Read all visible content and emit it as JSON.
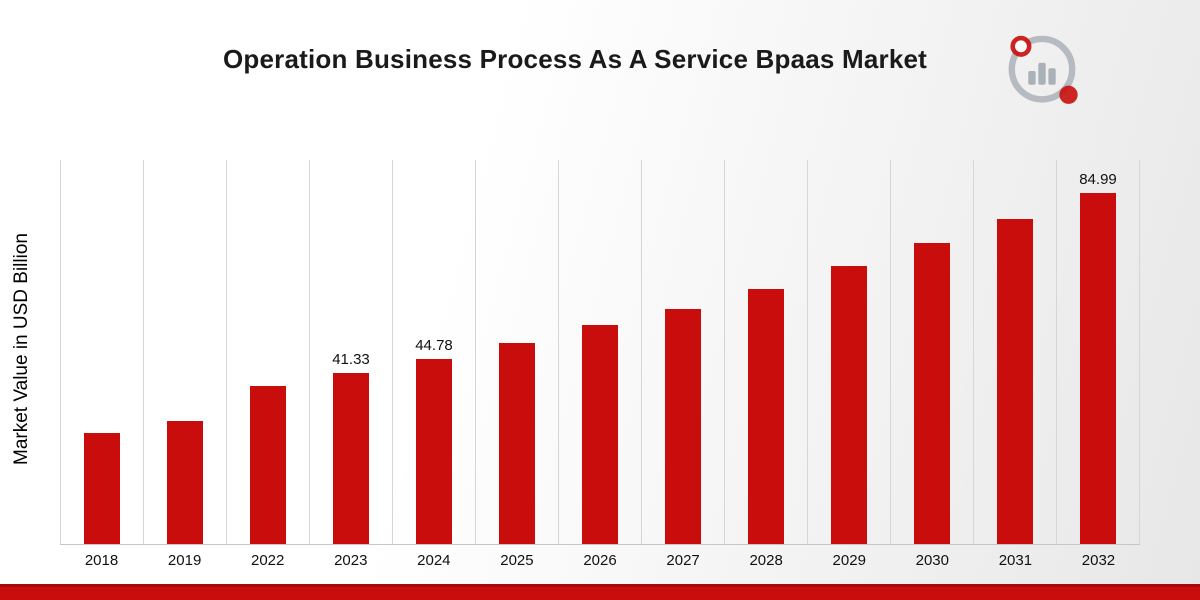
{
  "chart_data": {
    "type": "bar",
    "title": "Operation Business Process As A Service Bpaas Market",
    "xlabel": "",
    "ylabel": "Market Value in USD Billion",
    "categories": [
      "2018",
      "2019",
      "2022",
      "2023",
      "2024",
      "2025",
      "2026",
      "2027",
      "2028",
      "2029",
      "2030",
      "2031",
      "2032"
    ],
    "values": [
      26.8,
      29.9,
      38.2,
      41.33,
      44.78,
      48.6,
      53.0,
      57.0,
      61.8,
      67.3,
      72.8,
      78.6,
      84.99
    ],
    "bar_labels": [
      "",
      "",
      "",
      "41.33",
      "44.78",
      "",
      "",
      "",
      "",
      "",
      "",
      "",
      "84.99"
    ],
    "ylim": [
      0,
      93
    ],
    "grid": "vertical-only",
    "legend": "none",
    "bar_color": "#c90d0d"
  },
  "colors": {
    "accent": "#c90d0d",
    "accent_dark": "#a50b0b",
    "grid": "#d6d6d6",
    "axis": "#c6c6c6",
    "text": "#1a1a1a",
    "logo_gray": "#aab1b7"
  },
  "footer": {
    "accent_strip": true
  }
}
